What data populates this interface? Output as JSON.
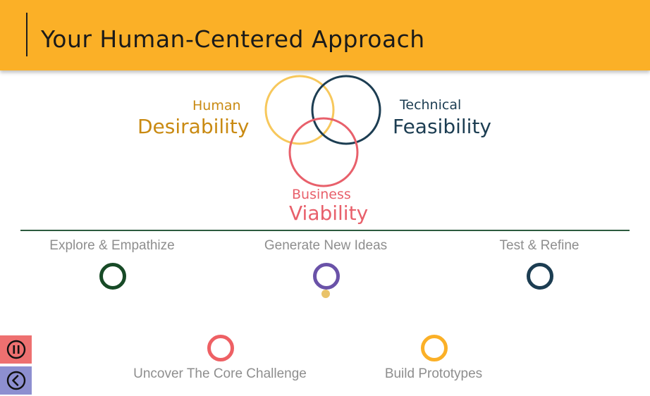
{
  "header": {
    "title": "Your Human-Centered Approach"
  },
  "venn": {
    "desirability": {
      "small": "Human",
      "big": "Desirability",
      "color": "#f7c85c"
    },
    "feasibility": {
      "small": "Technical",
      "big": "Feasibility",
      "color": "#1c3d52"
    },
    "viability": {
      "small": "Business",
      "big": "Viability",
      "color": "#e8606b"
    }
  },
  "timeline": {
    "top_steps": [
      {
        "label": "Explore & Empathize",
        "color": "#174a26"
      },
      {
        "label": "Generate New Ideas",
        "color": "#6a52a8"
      },
      {
        "label": "Test & Refine",
        "color": "#1c3d52"
      }
    ],
    "bottom_steps": [
      {
        "label": "Uncover The Core Challenge",
        "color": "#ee6064"
      },
      {
        "label": "Build Prototypes",
        "color": "#fbb027"
      }
    ],
    "marker_color": "#e9c36a"
  },
  "controls": {
    "pause_icon": "pause-circle-icon",
    "back_icon": "chevron-left-circle-icon",
    "pause_color": "#ee7070",
    "back_color": "#8d8fd0"
  }
}
